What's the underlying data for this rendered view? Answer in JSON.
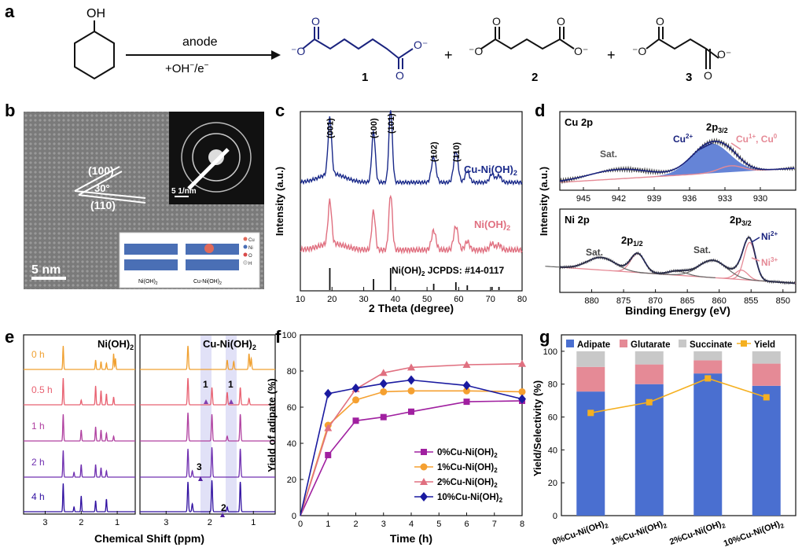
{
  "panel_a": {
    "letter": "a",
    "reactant_group": "OH",
    "arrow_top": "anode",
    "arrow_bottom_pre": "+OH",
    "arrow_bottom_mid": "/e",
    "plus": "+",
    "products": [
      {
        "number": "1"
      },
      {
        "number": "2"
      },
      {
        "number": "3"
      }
    ]
  },
  "panel_b": {
    "letter": "b",
    "lattice1": "(100)",
    "lattice2": "(110)",
    "angle": "30°",
    "scale_bar": "5 nm",
    "inset_scale": "5 1/nm",
    "legend": [
      "Cu",
      "Ni",
      "O",
      "H"
    ],
    "model_left": "Ni(OH)",
    "model_right": "Cu-Ni(OH)",
    "colors": {
      "cu": "#e06a5a",
      "ni": "#4a6fb5",
      "o": "#d94a4a",
      "h": "#dddddd"
    }
  },
  "panel_c": {
    "letter": "c",
    "ylabel": "Intensity (a.u.)",
    "xlabel": "2 Theta (degree)",
    "peak_labels": [
      "(001)",
      "(100)",
      "(101)",
      "(102)",
      "(110)"
    ],
    "series_top": "Cu-Ni(OH)",
    "series_mid": "Ni(OH)",
    "ref_label": "Ni(OH)",
    "ref_label_rest": " JCPDS: #14-0117",
    "colors": {
      "top": "#1a2a8a",
      "mid": "#e07080"
    },
    "chart_data": {
      "type": "line",
      "xlim": [
        10,
        80
      ],
      "x_ticks": [
        "10",
        "20",
        "30",
        "40",
        "50",
        "60",
        "70",
        "80"
      ],
      "reference_peaks": [
        19.3,
        33.1,
        38.5,
        52.1,
        59.1,
        62.7,
        70.5,
        72.7
      ],
      "peak_positions": [
        19.3,
        33.1,
        38.5,
        52.1,
        59.1
      ]
    }
  },
  "panel_d": {
    "letter": "d",
    "ylabel": "Intensity (a.u.)",
    "xlabel": "Binding Energy (eV)",
    "cu": {
      "title": "Cu 2p",
      "sat": "Sat.",
      "peak": "2p",
      "peak_sub": "3/2",
      "cu2": "Cu",
      "cu2_sup": "2+",
      "cu1": "Cu",
      "cu1_sup": "1+",
      "cu0": ", Cu",
      "cu0_sup": "0",
      "x_ticks": [
        "945",
        "942",
        "939",
        "936",
        "933",
        "930"
      ]
    },
    "ni": {
      "title": "Ni 2p",
      "sat1": "Sat.",
      "sat2": "Sat.",
      "p12": "2p",
      "p12_sub": "1/2",
      "p32": "2p",
      "p32_sub": "3/2",
      "ni2": "Ni",
      "ni2_sup": "2+",
      "ni3": "Ni",
      "ni3_sup": "3+",
      "x_ticks": [
        "880",
        "875",
        "870",
        "865",
        "860",
        "855",
        "850"
      ]
    },
    "colors": {
      "navy": "#1a237e",
      "fill": "#4a6fd0",
      "pink": "#e58a96",
      "gray": "#444444"
    }
  },
  "panel_e": {
    "letter": "e",
    "title_left": "Ni(OH)",
    "title_right": "Cu-Ni(OH)",
    "times": [
      "0 h",
      "0.5 h",
      "1 h",
      "2 h",
      "4 h"
    ],
    "time_colors": [
      "#f0a030",
      "#e86070",
      "#b040a0",
      "#7030b0",
      "#3010a0"
    ],
    "xlabel": "Chemical Shift (ppm)",
    "x_ticks_left": [
      "3",
      "2",
      "1"
    ],
    "x_ticks_right": [
      "3",
      "2",
      "1"
    ],
    "markers": {
      "m1a": "1",
      "m1b": "1",
      "m3": "3",
      "m2": "2"
    }
  },
  "panel_f": {
    "letter": "f",
    "ylabel": "Yield of adipate (%)",
    "xlabel": "Time (h)",
    "chart_data": {
      "type": "line",
      "x": [
        0,
        1,
        2,
        3,
        4,
        6,
        8
      ],
      "xlim": [
        0,
        8
      ],
      "ylim": [
        0,
        100
      ],
      "x_ticks": [
        "0",
        "1",
        "2",
        "3",
        "4",
        "5",
        "6",
        "7",
        "8"
      ],
      "y_ticks": [
        "0",
        "20",
        "40",
        "60",
        "80",
        "100"
      ],
      "series": [
        {
          "name": "0%Cu-Ni(OH)",
          "color": "#a020a0",
          "marker": "square",
          "values": [
            0,
            33.5,
            52.5,
            54.5,
            57.5,
            63,
            63.5
          ]
        },
        {
          "name": "1%Cu-Ni(OH)",
          "color": "#f5a030",
          "marker": "circle",
          "values": [
            0,
            50,
            64,
            68.5,
            69,
            69,
            68.5
          ]
        },
        {
          "name": "2%Cu-Ni(OH)",
          "color": "#e07080",
          "marker": "triangle",
          "values": [
            0,
            48.5,
            70,
            79,
            82,
            83.5,
            84
          ]
        },
        {
          "name": "10%Cu-Ni(OH)",
          "color": "#1a1aa0",
          "marker": "diamond",
          "values": [
            0,
            67.5,
            70.5,
            73,
            75,
            72,
            64.5
          ]
        }
      ]
    }
  },
  "panel_g": {
    "letter": "g",
    "ylabel": "Yield/Selectivity (%)",
    "legend": [
      "Adipate",
      "Glutarate",
      "Succinate",
      "Yield"
    ],
    "chart_data": {
      "type": "bar",
      "categories": [
        "0%Cu-Ni(OH)",
        "1%Cu-Ni(OH)",
        "2%Cu-Ni(OH)",
        "10%Cu-Ni(OH)"
      ],
      "ylim": [
        0,
        110
      ],
      "y_ticks": [
        "0",
        "20",
        "40",
        "60",
        "80",
        "100"
      ],
      "series": [
        {
          "name": "Adipate",
          "color": "#4a6fd0",
          "values": [
            75.5,
            80,
            86.5,
            79
          ]
        },
        {
          "name": "Glutarate",
          "color": "#e58a96",
          "values": [
            15,
            12,
            8,
            13.5
          ]
        },
        {
          "name": "Succinate",
          "color": "#c8c8c8",
          "values": [
            9.5,
            8,
            5.5,
            7.5
          ]
        },
        {
          "name": "Yield",
          "color": "#f5b020",
          "values": [
            62.5,
            69,
            83.5,
            72
          ]
        }
      ]
    }
  }
}
